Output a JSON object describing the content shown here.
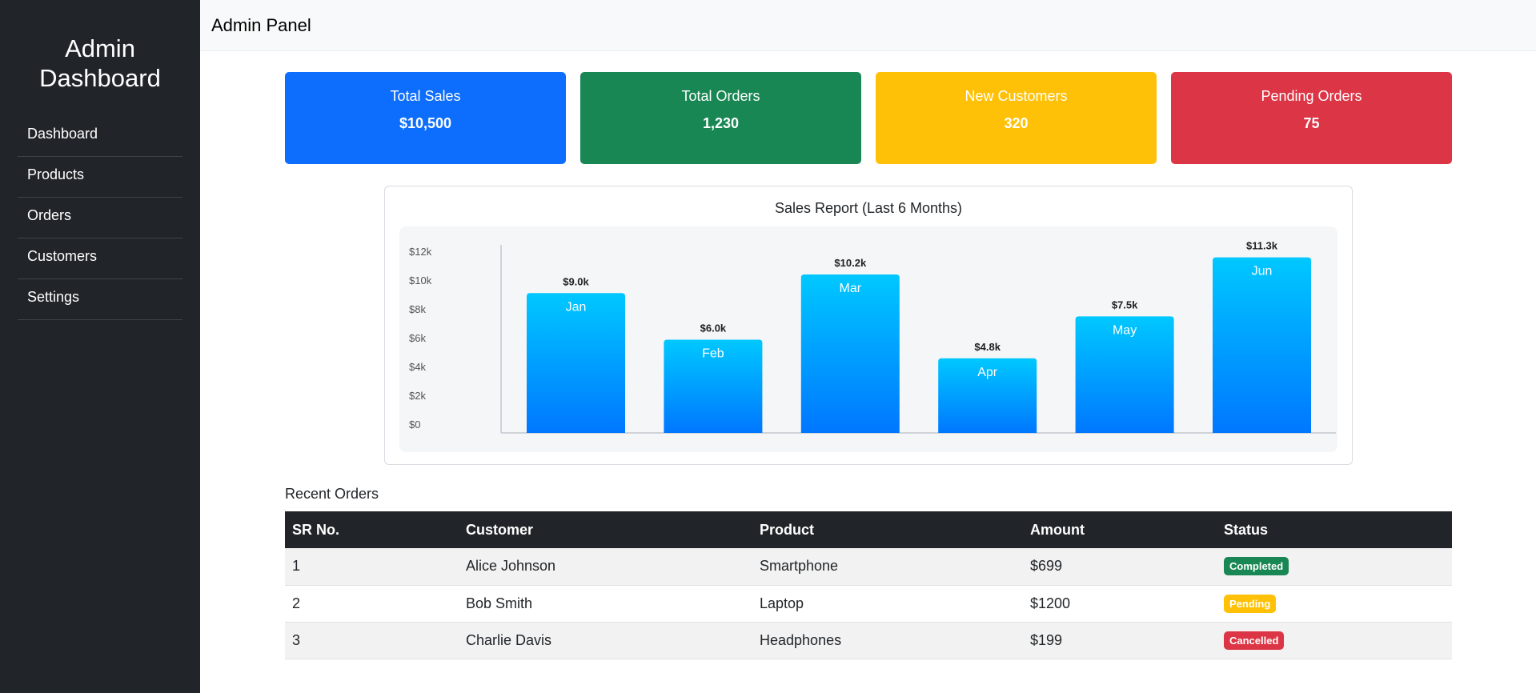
{
  "sidebar": {
    "brand_line1": "Admin",
    "brand_line2": "Dashboard",
    "items": [
      {
        "label": "Dashboard"
      },
      {
        "label": "Products"
      },
      {
        "label": "Orders"
      },
      {
        "label": "Customers"
      },
      {
        "label": "Settings"
      }
    ]
  },
  "topbar": {
    "title": "Admin Panel"
  },
  "cards": [
    {
      "label": "Total Sales",
      "value": "$10,500",
      "color": "#0d6efd"
    },
    {
      "label": "Total Orders",
      "value": "1,230",
      "color": "#198754"
    },
    {
      "label": "New Customers",
      "value": "320",
      "color": "#ffc107"
    },
    {
      "label": "Pending Orders",
      "value": "75",
      "color": "#dc3545"
    }
  ],
  "chart": {
    "title": "Sales Report (Last 6 Months)"
  },
  "chart_data": {
    "type": "bar",
    "title": "Sales Report (Last 6 Months)",
    "categories": [
      "Jan",
      "Feb",
      "Mar",
      "Apr",
      "May",
      "Jun"
    ],
    "values": [
      9.0,
      6.0,
      10.2,
      4.8,
      7.5,
      11.3
    ],
    "value_labels": [
      "$9.0k",
      "$6.0k",
      "$10.2k",
      "$4.8k",
      "$7.5k",
      "$11.3k"
    ],
    "y_ticks": [
      "$0",
      "$2k",
      "$4k",
      "$6k",
      "$8k",
      "$10k",
      "$12k"
    ],
    "ylim": [
      0,
      12
    ],
    "bar_color_top": "#00c8ff",
    "bar_color_bottom": "#0077ff",
    "grid": false
  },
  "orders": {
    "title": "Recent Orders",
    "columns": [
      "SR No.",
      "Customer",
      "Product",
      "Amount",
      "Status"
    ],
    "rows": [
      {
        "sr": "1",
        "customer": "Alice Johnson",
        "product": "Smartphone",
        "amount": "$699",
        "status": "Completed"
      },
      {
        "sr": "2",
        "customer": "Bob Smith",
        "product": "Laptop",
        "amount": "$1200",
        "status": "Pending"
      },
      {
        "sr": "3",
        "customer": "Charlie Davis",
        "product": "Headphones",
        "amount": "$199",
        "status": "Cancelled"
      }
    ]
  }
}
